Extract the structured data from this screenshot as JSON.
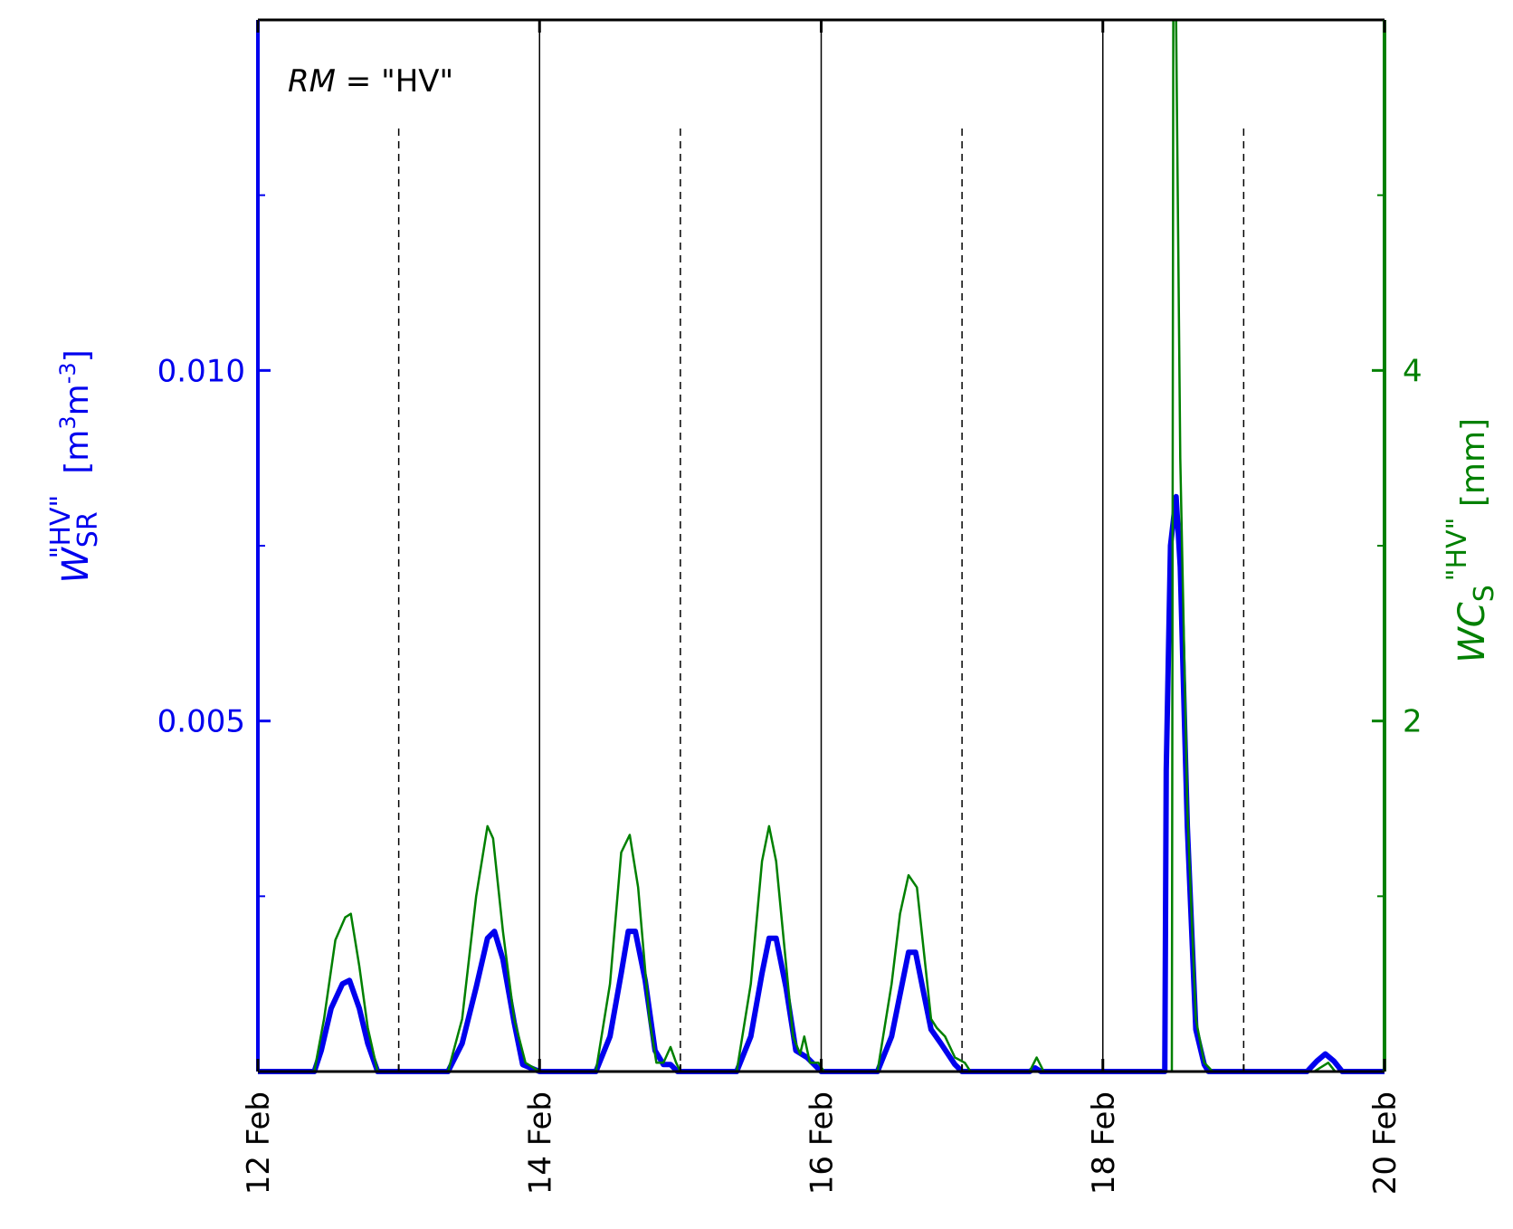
{
  "chart_data": {
    "type": "line",
    "annotation": {
      "variable": "RM",
      "equals": " = \"HV\""
    },
    "x_axis": {
      "unit": "day of February",
      "range": [
        12,
        20
      ],
      "ticks": [
        12,
        14,
        16,
        18,
        20
      ],
      "tick_labels": [
        "12 Feb",
        "14 Feb",
        "16 Feb",
        "18 Feb",
        "20 Feb"
      ],
      "solid_gridlines": [
        14,
        16,
        18
      ],
      "dashed_gridlines": [
        13,
        15,
        17,
        19
      ]
    },
    "y_left": {
      "label_main": "W",
      "label_sub": "SR",
      "label_sup": "\"HV\"",
      "label_unit_open": "  [m",
      "label_unit_sup1": "3",
      "label_unit_mid": "m",
      "label_unit_sup2": "-3",
      "label_unit_close": "]",
      "range": [
        0,
        0.015
      ],
      "major_ticks": [
        0.005,
        0.01
      ],
      "minor_ticks": [
        0.0025,
        0.0075,
        0.0125
      ],
      "tick_labels": [
        "0.005",
        "0.010"
      ],
      "color": "#0000ee"
    },
    "y_right": {
      "label_main": "WC",
      "label_sub": "S",
      "label_sup": "\"HV\"",
      "label_unit": " [mm]",
      "range": [
        0,
        6
      ],
      "major_ticks": [
        2,
        4
      ],
      "minor_ticks": [
        1,
        3,
        5
      ],
      "tick_labels": [
        "2",
        "4"
      ],
      "color": "#008000"
    },
    "series": [
      {
        "axis": "left",
        "color": "#0000ee",
        "points": [
          [
            12.0,
            0
          ],
          [
            12.4,
            0
          ],
          [
            12.45,
            0.0003
          ],
          [
            12.52,
            0.0009
          ],
          [
            12.6,
            0.00125
          ],
          [
            12.65,
            0.0013
          ],
          [
            12.72,
            0.0009
          ],
          [
            12.78,
            0.0004
          ],
          [
            12.85,
            0
          ],
          [
            13.35,
            0
          ],
          [
            13.45,
            0.0004
          ],
          [
            13.55,
            0.0012
          ],
          [
            13.63,
            0.0019
          ],
          [
            13.68,
            0.002
          ],
          [
            13.74,
            0.0016
          ],
          [
            13.82,
            0.0007
          ],
          [
            13.88,
            0.0001
          ],
          [
            14.0,
            0
          ],
          [
            14.4,
            0
          ],
          [
            14.5,
            0.0005
          ],
          [
            14.58,
            0.0014
          ],
          [
            14.63,
            0.002
          ],
          [
            14.68,
            0.002
          ],
          [
            14.75,
            0.0013
          ],
          [
            14.82,
            0.0003
          ],
          [
            14.88,
            0.0001
          ],
          [
            14.93,
            0.0001
          ],
          [
            14.98,
            0
          ],
          [
            15.4,
            0
          ],
          [
            15.5,
            0.0005
          ],
          [
            15.58,
            0.0014
          ],
          [
            15.63,
            0.0019
          ],
          [
            15.68,
            0.0019
          ],
          [
            15.75,
            0.0012
          ],
          [
            15.82,
            0.0003
          ],
          [
            15.9,
            0.0002
          ],
          [
            15.95,
            0.0001
          ],
          [
            16.0,
            0
          ],
          [
            16.4,
            0
          ],
          [
            16.5,
            0.0005
          ],
          [
            16.57,
            0.0012
          ],
          [
            16.62,
            0.0017
          ],
          [
            16.67,
            0.0017
          ],
          [
            16.72,
            0.0012
          ],
          [
            16.78,
            0.0006
          ],
          [
            16.85,
            0.0004
          ],
          [
            16.95,
            0.0001
          ],
          [
            17.0,
            0
          ],
          [
            17.48,
            0
          ],
          [
            17.52,
            5e-05
          ],
          [
            17.56,
            0
          ],
          [
            18.44,
            0
          ],
          [
            18.45,
            0.0043
          ],
          [
            18.48,
            0.0075
          ],
          [
            18.52,
            0.0082
          ],
          [
            18.55,
            0.0072
          ],
          [
            18.6,
            0.0035
          ],
          [
            18.66,
            0.0006
          ],
          [
            18.72,
            0.0001
          ],
          [
            18.75,
            0
          ],
          [
            19.45,
            0
          ],
          [
            19.52,
            0.00015
          ],
          [
            19.58,
            0.00025
          ],
          [
            19.64,
            0.00015
          ],
          [
            19.7,
            0
          ],
          [
            20.0,
            0
          ]
        ]
      },
      {
        "axis": "right",
        "color": "#008000",
        "points": [
          [
            12.0,
            0
          ],
          [
            12.4,
            0
          ],
          [
            12.47,
            0.3
          ],
          [
            12.55,
            0.75
          ],
          [
            12.62,
            0.88
          ],
          [
            12.66,
            0.9
          ],
          [
            12.72,
            0.6
          ],
          [
            12.78,
            0.25
          ],
          [
            12.85,
            0
          ],
          [
            13.35,
            0
          ],
          [
            13.45,
            0.3
          ],
          [
            13.55,
            1.0
          ],
          [
            13.63,
            1.4
          ],
          [
            13.67,
            1.33
          ],
          [
            13.74,
            0.8
          ],
          [
            13.82,
            0.3
          ],
          [
            13.9,
            0.05
          ],
          [
            14.0,
            0
          ],
          [
            14.4,
            0
          ],
          [
            14.5,
            0.5
          ],
          [
            14.58,
            1.25
          ],
          [
            14.64,
            1.35
          ],
          [
            14.7,
            1.05
          ],
          [
            14.78,
            0.3
          ],
          [
            14.83,
            0.05
          ],
          [
            14.88,
            0.05
          ],
          [
            14.93,
            0.14
          ],
          [
            14.97,
            0.05
          ],
          [
            15.0,
            0
          ],
          [
            15.4,
            0
          ],
          [
            15.5,
            0.5
          ],
          [
            15.58,
            1.2
          ],
          [
            15.63,
            1.4
          ],
          [
            15.68,
            1.2
          ],
          [
            15.74,
            0.7
          ],
          [
            15.8,
            0.2
          ],
          [
            15.85,
            0.1
          ],
          [
            15.88,
            0.2
          ],
          [
            15.92,
            0.05
          ],
          [
            15.98,
            0.05
          ],
          [
            16.02,
            0
          ],
          [
            16.4,
            0
          ],
          [
            16.5,
            0.5
          ],
          [
            16.56,
            0.9
          ],
          [
            16.62,
            1.12
          ],
          [
            16.68,
            1.05
          ],
          [
            16.74,
            0.6
          ],
          [
            16.78,
            0.3
          ],
          [
            16.82,
            0.25
          ],
          [
            16.88,
            0.2
          ],
          [
            16.95,
            0.08
          ],
          [
            17.02,
            0.05
          ],
          [
            17.06,
            0
          ],
          [
            17.48,
            0
          ],
          [
            17.53,
            0.08
          ],
          [
            17.58,
            0
          ],
          [
            18.49,
            0
          ],
          [
            18.5,
            6.0
          ],
          [
            18.52,
            6.0
          ],
          [
            18.55,
            3.5
          ],
          [
            18.6,
            1.5
          ],
          [
            18.66,
            0.3
          ],
          [
            18.72,
            0.05
          ],
          [
            18.78,
            0
          ],
          [
            19.5,
            0
          ],
          [
            19.6,
            0.05
          ],
          [
            19.65,
            0
          ],
          [
            20.0,
            0
          ]
        ]
      }
    ]
  }
}
